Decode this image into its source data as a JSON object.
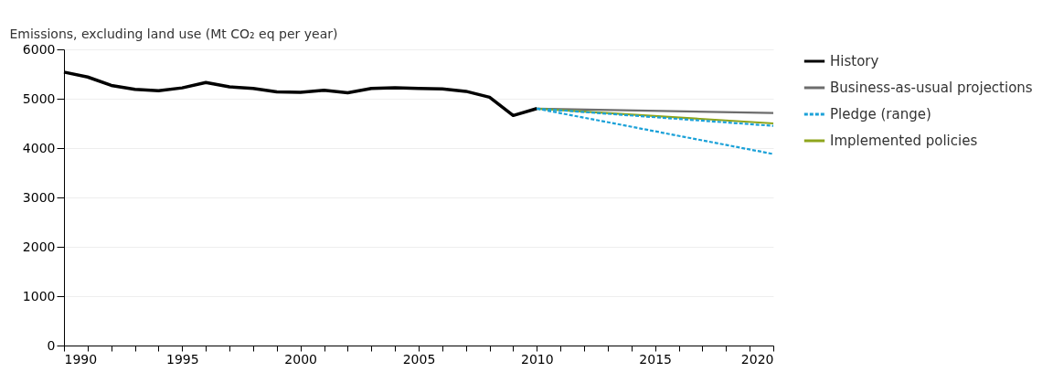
{
  "chart_data": {
    "type": "line",
    "ylabel": "Emissions, excluding land use (Mt CO₂ eq per year)",
    "xlim": [
      1990,
      2020
    ],
    "ylim": [
      0,
      6000
    ],
    "yticks": [
      0,
      1000,
      2000,
      3000,
      4000,
      5000,
      6000
    ],
    "xticks": [
      1990,
      {
        "value": 1991,
        "label": null
      },
      {
        "value": 1992,
        "label": null
      },
      {
        "value": 1993,
        "label": null
      },
      {
        "value": 1994,
        "label": null
      },
      1995,
      {
        "value": 1996,
        "label": null
      },
      {
        "value": 1997,
        "label": null
      },
      {
        "value": 1998,
        "label": null
      },
      {
        "value": 1999,
        "label": null
      },
      2000,
      {
        "value": 2001,
        "label": null
      },
      {
        "value": 2002,
        "label": null
      },
      {
        "value": 2003,
        "label": null
      },
      {
        "value": 2004,
        "label": null
      },
      2005,
      {
        "value": 2006,
        "label": null
      },
      {
        "value": 2007,
        "label": null
      },
      {
        "value": 2008,
        "label": null
      },
      {
        "value": 2009,
        "label": null
      },
      2010,
      {
        "value": 2011,
        "label": null
      },
      {
        "value": 2012,
        "label": null
      },
      {
        "value": 2013,
        "label": null
      },
      {
        "value": 2014,
        "label": null
      },
      2015,
      {
        "value": 2016,
        "label": null
      },
      {
        "value": 2017,
        "label": null
      },
      {
        "value": 2018,
        "label": null
      },
      {
        "value": 2019,
        "label": null
      },
      2020
    ],
    "grid": "y",
    "legend": "right",
    "marker": "none",
    "series": [
      {
        "name": "History",
        "color": "#000000",
        "line_style": "solid",
        "x": [
          1990,
          1991,
          1992,
          1993,
          1994,
          1995,
          1996,
          1997,
          1998,
          1999,
          2000,
          2001,
          2002,
          2003,
          2004,
          2005,
          2006,
          2007,
          2008,
          2009,
          2010
        ],
        "values": [
          5540,
          5440,
          5270,
          5190,
          5160,
          5220,
          5330,
          5240,
          5210,
          5140,
          5130,
          5170,
          5120,
          5210,
          5220,
          5210,
          5200,
          5150,
          5030,
          4660,
          4800
        ]
      },
      {
        "name": "Business-as-usual projections",
        "color": "#6d6d6d",
        "line_style": "solid",
        "x": [
          2010,
          2020
        ],
        "values": [
          4800,
          4710
        ]
      },
      {
        "name": "Pledge (range)",
        "color": "#1ba1d8",
        "line_style": "dashed",
        "x": [
          2010,
          2020
        ],
        "values": [
          4800,
          4450
        ]
      },
      {
        "color": "#1ba1d8",
        "line_style": "dashed",
        "x": [
          2010,
          2020
        ],
        "values": [
          4800,
          3880
        ]
      },
      {
        "name": "Implemented policies",
        "color": "#8ea51d",
        "line_style": "solid",
        "x": [
          2010,
          2020
        ],
        "values": [
          4800,
          4500
        ]
      }
    ]
  }
}
